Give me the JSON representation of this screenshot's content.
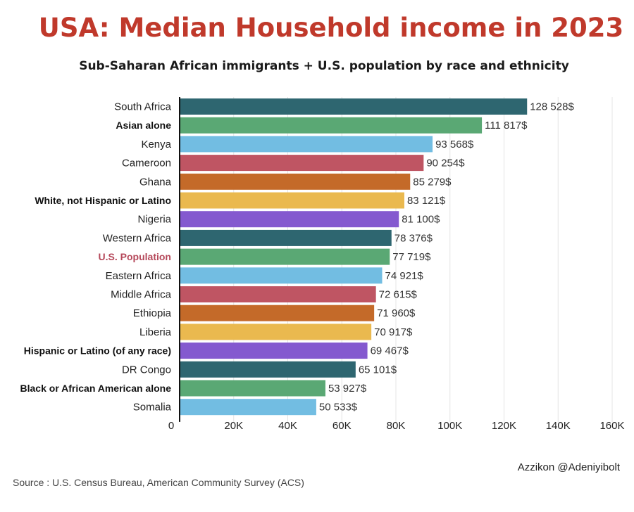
{
  "chart_data": {
    "type": "bar",
    "orientation": "horizontal",
    "title": "USA: Median Household income in 2023",
    "subtitle": "Sub-Saharan African immigrants + U.S. population by race and ethnicity",
    "xlim": [
      0,
      160000
    ],
    "x_ticks": [
      0,
      20000,
      40000,
      60000,
      80000,
      100000,
      120000,
      140000,
      160000
    ],
    "x_tick_labels": [
      "0",
      "20K",
      "40K",
      "60K",
      "80K",
      "100K",
      "120K",
      "140K",
      "160K"
    ],
    "grid": "vertical",
    "categories": [
      "South Africa",
      "Asian alone",
      "Kenya",
      "Cameroon",
      "Ghana",
      "White, not Hispanic or Latino",
      "Nigeria",
      "Western Africa",
      "U.S. Population",
      "Eastern Africa",
      "Middle Africa",
      "Ethiopia",
      "Liberia",
      "Hispanic or Latino (of any race)",
      "DR Congo",
      "Black or African American alone",
      "Somalia"
    ],
    "values": [
      128528,
      111817,
      93568,
      90254,
      85279,
      83121,
      81100,
      78376,
      77719,
      74921,
      72615,
      71960,
      70917,
      69467,
      65101,
      53927,
      50533
    ],
    "value_labels": [
      "128 528$",
      "111 817$",
      "93 568$",
      "90 254$",
      "85 279$",
      "83 121$",
      "81 100$",
      "78 376$",
      "77 719$",
      "74 921$",
      "72 615$",
      "71 960$",
      "70 917$",
      "69 467$",
      "65 101$",
      "53 927$",
      "50 533$"
    ],
    "label_styles": [
      "normal",
      "bold",
      "normal",
      "normal",
      "normal",
      "bold",
      "normal",
      "normal",
      "highlight",
      "normal",
      "normal",
      "normal",
      "normal",
      "bold",
      "normal",
      "bold",
      "normal"
    ],
    "colors": [
      "#2e6670",
      "#5aa874",
      "#72bde2",
      "#bf5563",
      "#c46a29",
      "#eab94f",
      "#8459cf",
      "#2e6670",
      "#5aa874",
      "#72bde2",
      "#bf5563",
      "#c46a29",
      "#eab94f",
      "#8459cf",
      "#2e6670",
      "#5aa874",
      "#72bde2"
    ]
  },
  "footer": {
    "credit": "Azzikon @Adeniyibolt",
    "source": "Source : U.S. Census Bureau, American Community Survey (ACS)"
  }
}
